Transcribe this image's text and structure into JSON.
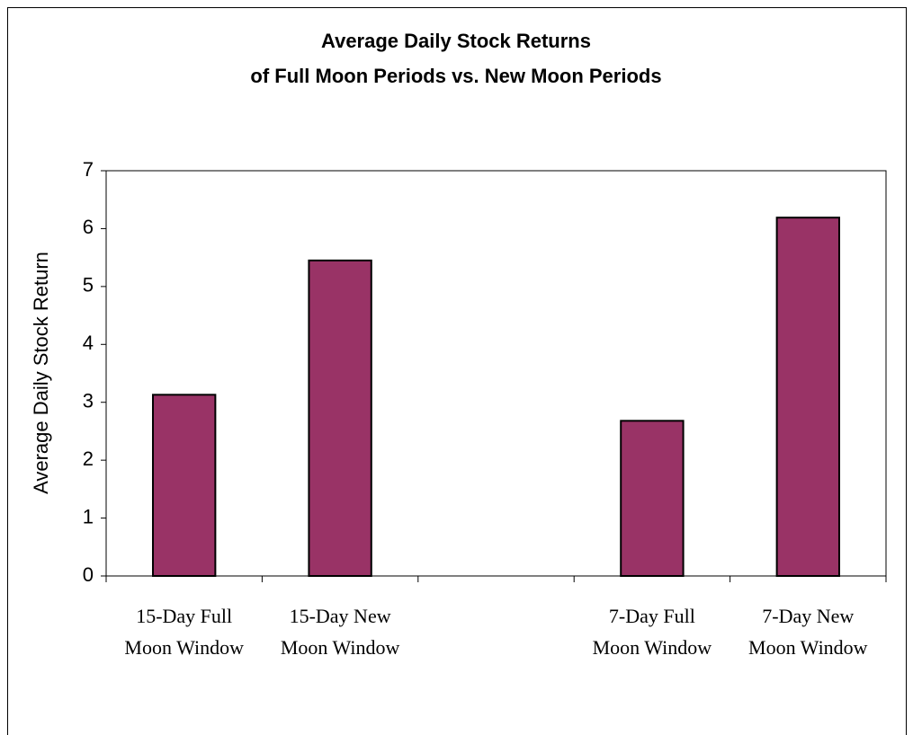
{
  "chart_data": {
    "type": "bar",
    "title": "Average Daily Stock Returns",
    "subtitle": "of Full Moon Periods vs. New Moon Periods",
    "y_label": "Average Daily Stock Return",
    "categories": [
      "15-Day Full Moon Window",
      "15-Day New Moon Window",
      null,
      "7-Day Full Moon Window",
      "7-Day New Moon Window"
    ],
    "values": [
      3.13,
      5.45,
      null,
      2.68,
      6.19
    ],
    "color": "#993366",
    "ylim": [
      0,
      7
    ],
    "yticks": [
      0,
      1,
      2,
      3,
      4,
      5,
      6,
      7
    ],
    "grid": false
  }
}
